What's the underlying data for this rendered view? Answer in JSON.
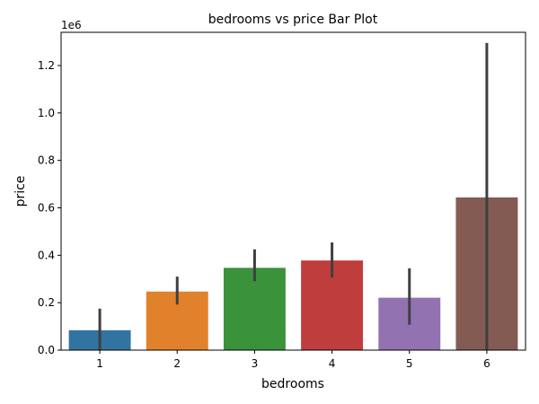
{
  "chart_data": {
    "type": "bar",
    "title": "bedrooms vs price Bar Plot",
    "xlabel": "bedrooms",
    "ylabel": "price",
    "y_offset_label": "1e6",
    "categories": [
      "1",
      "2",
      "3",
      "4",
      "5",
      "6"
    ],
    "values": [
      84000,
      247000,
      347000,
      378000,
      221000,
      644000
    ],
    "error_low": [
      0,
      192000,
      291000,
      306000,
      107000,
      0
    ],
    "error_high": [
      175000,
      310000,
      425000,
      454000,
      345000,
      1295000
    ],
    "colors": [
      "#3274a1",
      "#e1812c",
      "#3a923a",
      "#c03d3e",
      "#9372b2",
      "#845b53"
    ],
    "errorbar_color": "#3f3f3f",
    "ylim": [
      0,
      1340000
    ],
    "yticks": [
      0,
      200000,
      400000,
      600000,
      800000,
      1000000,
      1200000
    ],
    "ytick_labels": [
      "0.0",
      "0.2",
      "0.4",
      "0.6",
      "0.8",
      "1.0",
      "1.2"
    ],
    "grid": false
  }
}
